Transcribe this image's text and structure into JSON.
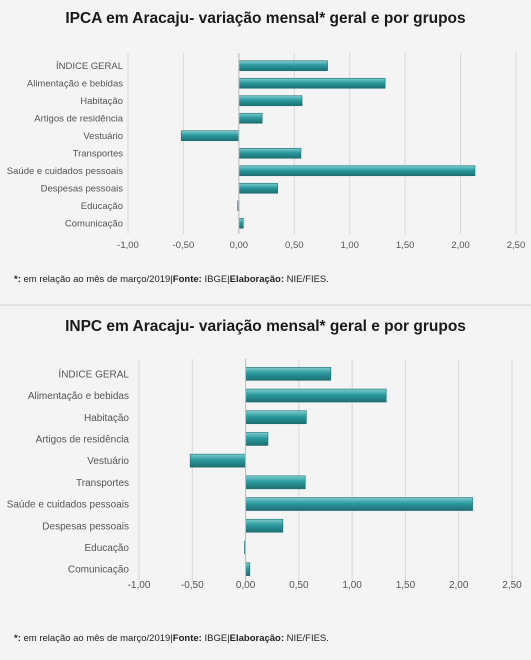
{
  "colors": {
    "bar": "#2a9a9e",
    "bar_dark": "#1d6f72",
    "bar_light": "#7fcdd0",
    "grid": "#d9d9d9",
    "panel_bg": "#f4f4f4"
  },
  "chart_data": [
    {
      "type": "bar",
      "orientation": "horizontal",
      "title": "IPCA em Aracaju- variação mensal* geral e por grupos",
      "categories": [
        "ÍNDICE GERAL",
        "Alimentação e bebidas",
        "Habitação",
        "Artigos de residência",
        "Vestuário",
        "Transportes",
        "Saúde e cuidados pessoais",
        "Despesas pessoais",
        "Educação",
        "Comunicação"
      ],
      "values": [
        0.8,
        1.32,
        0.57,
        0.21,
        -0.52,
        0.56,
        2.13,
        0.35,
        -0.01,
        0.04
      ],
      "xlim": [
        -1.0,
        2.5
      ],
      "xticks": [
        "-1,00",
        "-0,50",
        "0,00",
        "0,50",
        "1,00",
        "1,50",
        "2,00",
        "2,50"
      ],
      "xtick_values": [
        -1.0,
        -0.5,
        0.0,
        0.5,
        1.0,
        1.5,
        2.0,
        2.5
      ],
      "grid": true,
      "legend": "none",
      "footnote": {
        "star": "*:",
        "text": " em relação ao mês de março/2019|",
        "fonte_label": "Fonte:",
        "fonte_text": " IBGE|",
        "elab_label": "Elaboração:",
        "elab_text": " NIE/FIES."
      }
    },
    {
      "type": "bar",
      "orientation": "horizontal",
      "title": "INPC em Aracaju- variação mensal* geral e por grupos",
      "categories": [
        "ÍNDICE GERAL",
        "Alimentação e bebidas",
        "Habitação",
        "Artigos de residência",
        "Vestuário",
        "Transportes",
        "Saúde e cuidados pessoais",
        "Despesas pessoais",
        "Educação",
        "Comunicação"
      ],
      "values": [
        0.8,
        1.32,
        0.57,
        0.21,
        -0.52,
        0.56,
        2.13,
        0.35,
        -0.01,
        0.04
      ],
      "xlim": [
        -1.0,
        2.5
      ],
      "xticks": [
        "-1,00",
        "-0,50",
        "0,00",
        "0,50",
        "1,00",
        "1,50",
        "2,00",
        "2,50"
      ],
      "xtick_values": [
        -1.0,
        -0.5,
        0.0,
        0.5,
        1.0,
        1.5,
        2.0,
        2.5
      ],
      "grid": true,
      "legend": "none",
      "footnote": {
        "star": "*:",
        "text": " em relação ao mês de março/2019|",
        "fonte_label": "Fonte:",
        "fonte_text": " IBGE|",
        "elab_label": "Elaboração:",
        "elab_text": " NIE/FIES."
      }
    }
  ]
}
